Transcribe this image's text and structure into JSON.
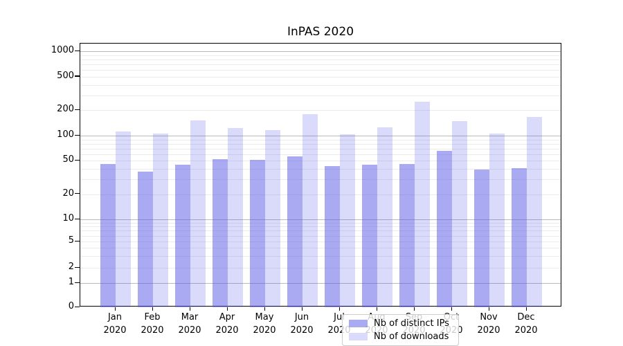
{
  "title": "InPAS 2020",
  "chart_data": {
    "type": "bar",
    "title": "InPAS 2020",
    "categories": [
      "Jan 2020",
      "Feb 2020",
      "Mar 2020",
      "Apr 2020",
      "May 2020",
      "Jun 2020",
      "Jul 2020",
      "Aug 2020",
      "Sep 2020",
      "Oct 2020",
      "Nov 2020",
      "Dec 2020"
    ],
    "series": [
      {
        "name": "Nb of distinct IPs",
        "color": "rgba(85,85,230,0.50)",
        "values": [
          46,
          37,
          45,
          52,
          51,
          57,
          43,
          45,
          46,
          66,
          39,
          41
        ]
      },
      {
        "name": "Nb of downloads",
        "color": "rgba(85,85,230,0.22)",
        "values": [
          112,
          105,
          151,
          123,
          117,
          180,
          104,
          126,
          250,
          148,
          106,
          166
        ]
      }
    ],
    "xlabel": "",
    "ylabel": "",
    "yscale": "symlog",
    "yticks": [
      0,
      1,
      2,
      5,
      10,
      20,
      50,
      100,
      200,
      500,
      1000
    ],
    "ylim": [
      0,
      1200
    ],
    "grid": "both",
    "legend_position": "lower center (inside plot)"
  },
  "colors": {
    "bar_base": "#5555e6",
    "major_grid": "#b9b9b9",
    "minor_grid": "#ebebeb",
    "axis": "#000000",
    "legend_border": "#cccccc"
  }
}
